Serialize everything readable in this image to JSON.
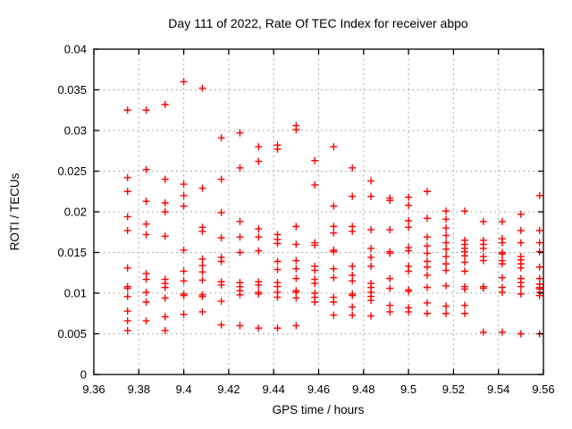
{
  "title": "Day 111 of 2022, Rate Of TEC Index for receiver abpo",
  "chart_data": {
    "type": "scatter",
    "title": "Day 111 of 2022, Rate Of TEC Index for receiver abpo",
    "xlabel": "GPS time / hours",
    "ylabel": "ROTI / TECUs",
    "xlim": [
      9.36,
      9.56
    ],
    "ylim": [
      0,
      0.04
    ],
    "grid": true,
    "legend": false,
    "marker": "plus",
    "marker_color": "#ff0000",
    "grid_color": "#a8a8a8",
    "border_color": "#000000",
    "xticks": {
      "values": [
        9.36,
        9.38,
        9.4,
        9.42,
        9.44,
        9.46,
        9.48,
        9.5,
        9.52,
        9.54,
        9.56
      ],
      "labels": [
        "9.36",
        "9.38",
        "9.4",
        "9.42",
        "9.44",
        "9.46",
        "9.48",
        "9.5",
        "9.52",
        "9.54",
        "9.56"
      ]
    },
    "yticks": {
      "values": [
        0,
        0.005,
        0.01,
        0.015,
        0.02,
        0.025,
        0.03,
        0.035,
        0.04
      ],
      "labels": [
        "0",
        "0.005",
        "0.01",
        "0.015",
        "0.02",
        "0.025",
        "0.03",
        "0.035",
        "0.04"
      ]
    },
    "columns": [
      {
        "x": 9.375,
        "y": [
          0.0325,
          0.0242,
          0.0225,
          0.0194,
          0.0177,
          0.0131,
          0.0108,
          0.0106,
          0.0096,
          0.0078,
          0.0066,
          0.0054
        ]
      },
      {
        "x": 9.3833,
        "y": [
          0.0325,
          0.0252,
          0.0213,
          0.0185,
          0.0172,
          0.0124,
          0.0117,
          0.0101,
          0.0089,
          0.0066
        ]
      },
      {
        "x": 9.3917,
        "y": [
          0.0332,
          0.024,
          0.0211,
          0.02,
          0.017,
          0.0117,
          0.0112,
          0.0107,
          0.0094,
          0.0071,
          0.0054
        ]
      },
      {
        "x": 9.4,
        "y": [
          0.036,
          0.0234,
          0.022,
          0.0207,
          0.0153,
          0.0127,
          0.0115,
          0.0099,
          0.0097,
          0.0074
        ]
      },
      {
        "x": 9.4083,
        "y": [
          0.0352,
          0.0229,
          0.0181,
          0.0176,
          0.0142,
          0.0134,
          0.0126,
          0.0116,
          0.0098,
          0.0096,
          0.0077
        ]
      },
      {
        "x": 9.4167,
        "y": [
          0.0291,
          0.024,
          0.0199,
          0.0168,
          0.0144,
          0.0139,
          0.0114,
          0.011,
          0.009,
          0.0061
        ]
      },
      {
        "x": 9.425,
        "y": [
          0.0297,
          0.0254,
          0.0188,
          0.0169,
          0.015,
          0.0113,
          0.0108,
          0.0103,
          0.0098,
          0.006
        ]
      },
      {
        "x": 9.4333,
        "y": [
          0.028,
          0.0262,
          0.0179,
          0.0169,
          0.0152,
          0.0114,
          0.011,
          0.0101,
          0.0099,
          0.0057
        ]
      },
      {
        "x": 9.4417,
        "y": [
          0.0282,
          0.0277,
          0.0172,
          0.0166,
          0.0161,
          0.0139,
          0.0129,
          0.0113,
          0.0108,
          0.0101,
          0.0095,
          0.0057
        ]
      },
      {
        "x": 9.45,
        "y": [
          0.0306,
          0.0301,
          0.0182,
          0.016,
          0.014,
          0.013,
          0.0118,
          0.0103,
          0.0101,
          0.0094,
          0.006
        ]
      },
      {
        "x": 9.4583,
        "y": [
          0.0263,
          0.0233,
          0.0162,
          0.0159,
          0.0133,
          0.0128,
          0.0117,
          0.0112,
          0.01,
          0.0095,
          0.0089
        ]
      },
      {
        "x": 9.4667,
        "y": [
          0.028,
          0.0207,
          0.0182,
          0.0174,
          0.0153,
          0.0151,
          0.013,
          0.0119,
          0.0095,
          0.0089,
          0.0073
        ]
      },
      {
        "x": 9.475,
        "y": [
          0.0254,
          0.0219,
          0.0182,
          0.0176,
          0.0133,
          0.0122,
          0.0115,
          0.0099,
          0.0097,
          0.0083,
          0.0073
        ]
      },
      {
        "x": 9.4833,
        "y": [
          0.0238,
          0.0219,
          0.0178,
          0.0155,
          0.0144,
          0.0133,
          0.0112,
          0.0107,
          0.0101,
          0.0096,
          0.0091,
          0.0072
        ]
      },
      {
        "x": 9.4917,
        "y": [
          0.0217,
          0.0214,
          0.0178,
          0.0151,
          0.0149,
          0.0118,
          0.0106,
          0.0085,
          0.0077
        ]
      },
      {
        "x": 9.5,
        "y": [
          0.0218,
          0.0208,
          0.0189,
          0.0181,
          0.0156,
          0.0152,
          0.0133,
          0.0127,
          0.0104,
          0.0102,
          0.0082,
          0.0077
        ]
      },
      {
        "x": 9.5083,
        "y": [
          0.0225,
          0.0192,
          0.0169,
          0.0158,
          0.0149,
          0.0139,
          0.0132,
          0.0122,
          0.0107,
          0.0088,
          0.0075
        ]
      },
      {
        "x": 9.5167,
        "y": [
          0.0201,
          0.0191,
          0.018,
          0.0171,
          0.0162,
          0.0154,
          0.0145,
          0.0136,
          0.0128,
          0.0109,
          0.0084,
          0.0075
        ]
      },
      {
        "x": 9.525,
        "y": [
          0.0201,
          0.0165,
          0.016,
          0.0155,
          0.0151,
          0.0146,
          0.0138,
          0.0127,
          0.0108,
          0.0105,
          0.0085,
          0.0075
        ]
      },
      {
        "x": 9.5333,
        "y": [
          0.0188,
          0.0165,
          0.016,
          0.0155,
          0.0145,
          0.014,
          0.0108,
          0.0106,
          0.0052
        ]
      },
      {
        "x": 9.5417,
        "y": [
          0.0188,
          0.0167,
          0.0162,
          0.015,
          0.0148,
          0.014,
          0.0136,
          0.0119,
          0.0107,
          0.0101,
          0.0052
        ]
      },
      {
        "x": 9.55,
        "y": [
          0.0197,
          0.0177,
          0.0162,
          0.0145,
          0.0141,
          0.0136,
          0.0131,
          0.0118,
          0.0113,
          0.0108,
          0.0099,
          0.005
        ]
      },
      {
        "x": 9.5583,
        "y": [
          0.022,
          0.0177,
          0.0162,
          0.0151,
          0.0132,
          0.0118,
          0.0111,
          0.0107,
          0.0105,
          0.0101,
          0.0097,
          0.005
        ]
      }
    ]
  }
}
